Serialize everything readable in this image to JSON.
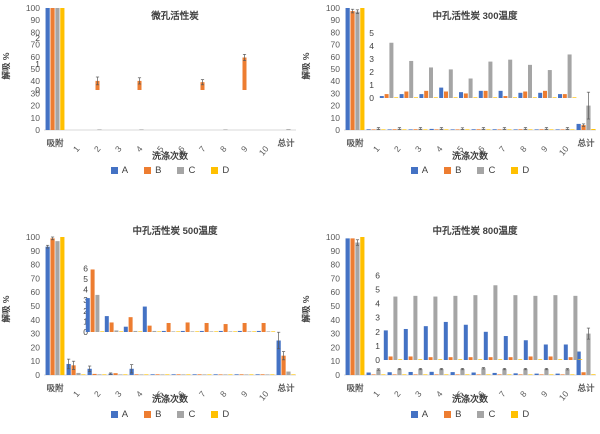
{
  "colors": {
    "A": "#4472C4",
    "B": "#ED7D31",
    "C": "#A5A5A5",
    "D": "#FFC000"
  },
  "legend": [
    "A",
    "B",
    "C",
    "D"
  ],
  "chart_data": [
    {
      "type": "bar",
      "title": "微孔活性炭",
      "xlabel": "洗涤次数",
      "ylabel": "解吸 %",
      "ylim": [
        0,
        100
      ],
      "ytick_step": 10,
      "legend_position": "bottom",
      "categories": [
        "吸附",
        "1",
        "2",
        "3",
        "4",
        "5",
        "6",
        "7",
        "8",
        "9",
        "10",
        "总计"
      ],
      "series": [
        {
          "name": "A",
          "values": [
            100,
            0,
            0,
            0,
            0,
            0,
            0,
            0,
            0,
            0,
            0,
            0
          ]
        },
        {
          "name": "B",
          "values": [
            100,
            0,
            0,
            0,
            0,
            0,
            0,
            0,
            0,
            0,
            0,
            0
          ]
        },
        {
          "name": "C",
          "values": [
            100,
            0,
            0.4,
            0,
            0.4,
            0,
            0,
            0,
            0.4,
            0,
            0,
            0.7
          ]
        },
        {
          "name": "D",
          "values": [
            100,
            0,
            0,
            0,
            0,
            0,
            0,
            0,
            0,
            0,
            0,
            0
          ]
        }
      ],
      "inset": {
        "ylim": [
          0,
          2.6
        ],
        "yticks": [
          0,
          1,
          2
        ],
        "categories": [
          "1",
          "2",
          "3",
          "4",
          "5",
          "6",
          "7",
          "8",
          "9",
          "10"
        ],
        "series": [
          {
            "name": "B",
            "values": [
              0,
              0.35,
              0,
              0.35,
              0,
              0,
              0.3,
              0,
              1.25,
              0
            ],
            "errors": [
              0,
              0.15,
              0,
              0.12,
              0,
              0,
              0.1,
              0,
              0.12,
              0
            ]
          }
        ]
      }
    },
    {
      "type": "bar",
      "title": "中孔活性炭  300温度",
      "xlabel": "洗涤次数",
      "ylabel": "解吸 %",
      "ylim": [
        0,
        100
      ],
      "ytick_step": 10,
      "legend_position": "bottom",
      "categories": [
        "吸附",
        "1",
        "2",
        "3",
        "4",
        "5",
        "6",
        "7",
        "8",
        "9",
        "10",
        "总计"
      ],
      "series": [
        {
          "name": "A",
          "values": [
            100,
            0.6,
            0.5,
            0.5,
            0.9,
            0.5,
            0.6,
            0.6,
            0.5,
            0.5,
            0.4,
            5
          ]
        },
        {
          "name": "B",
          "values": [
            97.5,
            0.4,
            0.6,
            0.6,
            0.5,
            0.4,
            0.6,
            0.2,
            0.6,
            0.6,
            0.4,
            4
          ],
          "errors": [
            1.5,
            0,
            0,
            0,
            0,
            0,
            0,
            0,
            0,
            0,
            0,
            1
          ]
        },
        {
          "name": "C",
          "values": [
            97,
            1,
            1,
            1,
            1,
            0.8,
            1,
            1,
            1,
            1,
            1,
            20
          ],
          "errors": [
            1.5,
            1,
            1,
            1,
            1,
            1,
            1,
            1,
            1,
            1,
            1,
            11
          ]
        },
        {
          "name": "D",
          "values": [
            100,
            0.2,
            0.2,
            0.2,
            0.2,
            0.2,
            0.2,
            0.2,
            0.2,
            0.2,
            0.2,
            0.8
          ]
        }
      ],
      "inset": {
        "ylim": [
          0,
          5.4
        ],
        "yticks": [
          0,
          1,
          2,
          3,
          4,
          5
        ],
        "categories": [
          "1",
          "2",
          "3",
          "4",
          "5",
          "6",
          "7",
          "8",
          "9",
          "10"
        ],
        "series": [
          {
            "name": "A",
            "values": [
              0.15,
              0.3,
              0.3,
              0.8,
              0.45,
              0.55,
              0.55,
              0.4,
              0.4,
              0.3
            ]
          },
          {
            "name": "B",
            "values": [
              0.3,
              0.5,
              0.55,
              0.5,
              0.35,
              0.55,
              0.15,
              0.5,
              0.55,
              0.3
            ]
          },
          {
            "name": "C",
            "values": [
              4.25,
              2.85,
              2.35,
              2.2,
              1.5,
              2.8,
              2.95,
              2.55,
              2.15,
              3.35
            ]
          },
          {
            "name": "D",
            "values": [
              0.05,
              0.05,
              0.05,
              0.05,
              0.05,
              0.05,
              0.05,
              0.05,
              0.05,
              0.05
            ]
          }
        ]
      }
    },
    {
      "type": "bar",
      "title": "中孔活性炭  500温度",
      "xlabel": "洗涤次数",
      "ylabel": "解吸 %",
      "ylim": [
        0,
        100
      ],
      "ytick_step": 10,
      "legend_position": "bottom",
      "categories": [
        "吸附",
        "1",
        "2",
        "3",
        "4",
        "5",
        "6",
        "7",
        "8",
        "9",
        "10",
        "总计"
      ],
      "series": [
        {
          "name": "A",
          "values": [
            93,
            8,
            4.5,
            1,
            4.5,
            0.5,
            0.5,
            0.5,
            0.5,
            0.5,
            0.5,
            25
          ],
          "errors": [
            1,
            3.5,
            2,
            0.5,
            3,
            0,
            0,
            0,
            0,
            0,
            0,
            6
          ]
        },
        {
          "name": "B",
          "values": [
            99,
            7,
            0.8,
            1.3,
            0.5,
            0.5,
            0.5,
            0.5,
            0.3,
            0.5,
            0.5,
            14
          ],
          "errors": [
            1,
            3,
            0,
            0,
            0,
            0,
            0,
            0,
            0,
            0,
            0,
            3
          ]
        },
        {
          "name": "C",
          "values": [
            97,
            1.5,
            0.5,
            0.3,
            0.2,
            0.2,
            0.2,
            0.2,
            0.2,
            0.2,
            0.2,
            2.5
          ]
        },
        {
          "name": "D",
          "values": [
            100,
            0.2,
            0.2,
            0.2,
            0.2,
            0.2,
            0.2,
            0.2,
            0.2,
            0.2,
            0.2,
            0.4
          ]
        }
      ],
      "inset": {
        "ylim": [
          0,
          6.4
        ],
        "yticks": [
          0,
          1,
          2,
          3,
          4,
          5,
          6
        ],
        "categories": [
          "1",
          "2",
          "3",
          "4",
          "5",
          "6",
          "7",
          "8",
          "9",
          "10"
        ],
        "series": [
          {
            "name": "A",
            "values": [
              3.2,
              1.5,
              0.5,
              2.4,
              0.1,
              0.1,
              0.1,
              0.1,
              0.1,
              0.1
            ]
          },
          {
            "name": "B",
            "values": [
              5.9,
              0.9,
              1.4,
              0.6,
              0.85,
              0.9,
              0.85,
              0.75,
              0.85,
              0.85
            ]
          },
          {
            "name": "C",
            "values": [
              3.5,
              0.15,
              0.1,
              0.1,
              0.05,
              0.05,
              0.05,
              0.05,
              0.05,
              0.05
            ]
          },
          {
            "name": "D",
            "values": [
              0.05,
              0.05,
              0.05,
              0.05,
              0.05,
              0.05,
              0.05,
              0.05,
              0.05,
              0.05
            ]
          }
        ]
      }
    },
    {
      "type": "bar",
      "title": "中孔活性炭  800温度",
      "xlabel": "洗涤次数",
      "ylabel": "解吸 %",
      "ylim": [
        0,
        100
      ],
      "ytick_step": 10,
      "legend_position": "bottom",
      "categories": [
        "吸附",
        "1",
        "2",
        "3",
        "4",
        "5",
        "6",
        "7",
        "8",
        "9",
        "10",
        "总计"
      ],
      "series": [
        {
          "name": "A",
          "values": [
            99,
            1.8,
            2,
            2.2,
            2.3,
            2.1,
            1.8,
            1.5,
            1.2,
            1,
            1,
            17
          ]
        },
        {
          "name": "B",
          "values": [
            99,
            0.3,
            0.4,
            0.4,
            0.3,
            0.3,
            0.3,
            0.3,
            0.3,
            0.3,
            0.3,
            2
          ]
        },
        {
          "name": "C",
          "values": [
            96,
            4,
            4.3,
            4.3,
            4.3,
            4.3,
            4.9,
            4.3,
            4.3,
            4.3,
            4.2,
            30
          ],
          "errors": [
            2,
            0.5,
            0.5,
            0.5,
            0.5,
            0.5,
            0.5,
            0.5,
            0.5,
            0.5,
            0.5,
            4
          ]
        },
        {
          "name": "D",
          "values": [
            100,
            0.2,
            0.2,
            0.2,
            0.2,
            0.2,
            0.2,
            0.2,
            0.2,
            0.2,
            0.2,
            0.5
          ]
        }
      ],
      "inset": {
        "ylim": [
          0,
          6.4
        ],
        "yticks": [
          0,
          1,
          2,
          3,
          4,
          5,
          6
        ],
        "categories": [
          "1",
          "2",
          "3",
          "4",
          "5",
          "6",
          "7",
          "8",
          "9",
          "10"
        ],
        "series": [
          {
            "name": "A",
            "values": [
              2.1,
              2.2,
              2.4,
              2.7,
              2.5,
              2.0,
              1.7,
              1.4,
              1.1,
              1.1
            ]
          },
          {
            "name": "B",
            "values": [
              0.25,
              0.25,
              0.2,
              0.2,
              0.2,
              0.2,
              0.2,
              0.25,
              0.25,
              0.2
            ]
          },
          {
            "name": "C",
            "values": [
              4.5,
              4.55,
              4.5,
              4.55,
              4.6,
              5.3,
              4.6,
              4.55,
              4.6,
              4.55
            ]
          },
          {
            "name": "D",
            "values": [
              0.05,
              0.05,
              0.05,
              0.05,
              0.05,
              0.05,
              0.05,
              0.05,
              0.05,
              0.05
            ]
          }
        ]
      }
    }
  ]
}
